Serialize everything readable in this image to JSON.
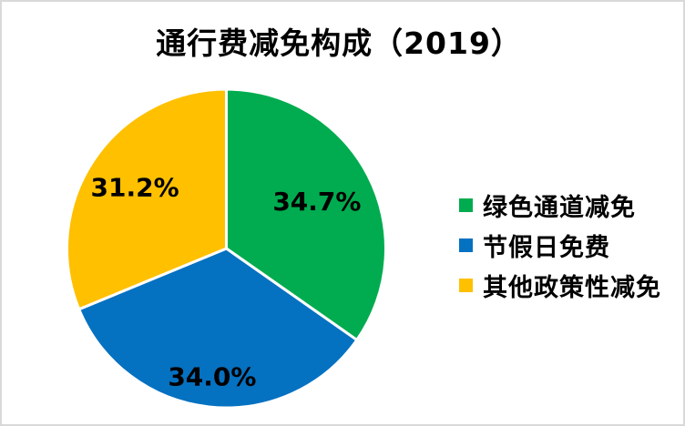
{
  "page": {
    "background_color": "#ffffff",
    "frame_border_color": "#d9d9d9"
  },
  "chart_data": {
    "type": "pie",
    "title": "通行费减免构成（2019）",
    "direction": "clockwise",
    "start_angle_deg": 0,
    "legend_position": "right",
    "slice_border_color": "#ffffff",
    "label_color": "#000000",
    "series": [
      {
        "label": "绿色通道减免",
        "value": 34.7,
        "display": "34.7%",
        "color": "#00AC4F"
      },
      {
        "label": "节假日免费",
        "value": 34.0,
        "display": "34.0%",
        "color": "#0571C1"
      },
      {
        "label": "其他政策性减免",
        "value": 31.2,
        "display": "31.2%",
        "color": "#FFC000"
      }
    ]
  }
}
